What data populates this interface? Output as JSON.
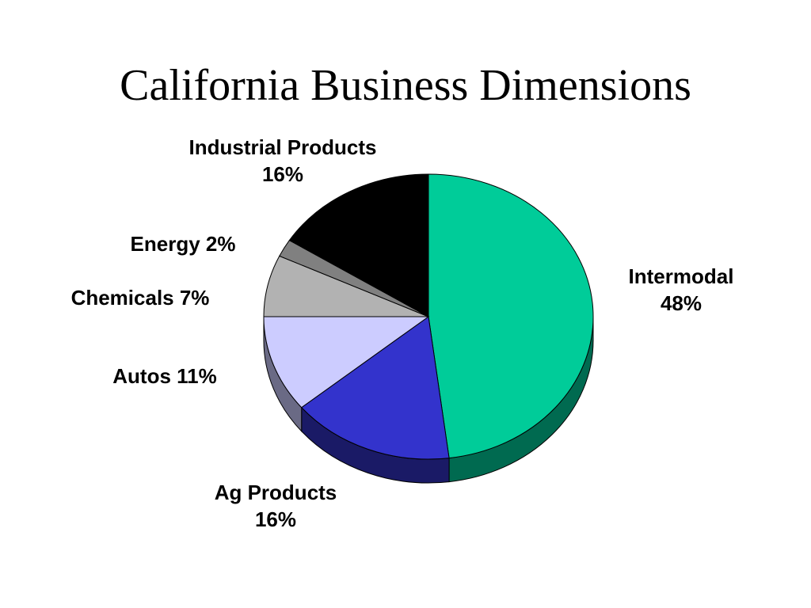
{
  "slide": {
    "title": "California Business Dimensions"
  },
  "chart_data": {
    "type": "pie",
    "style": "3d",
    "title": "California Business Dimensions",
    "slices": [
      {
        "name": "Intermodal",
        "value": 48,
        "label_lines": [
          "Intermodal",
          "48%"
        ],
        "color": "#00CC99",
        "side_color": "#006A50"
      },
      {
        "name": "Ag Products",
        "value": 16,
        "label_lines": [
          "Ag Products",
          "16%"
        ],
        "color": "#3333CC",
        "side_color": "#1A1A66"
      },
      {
        "name": "Autos",
        "value": 11,
        "label_lines": [
          "Autos 11%"
        ],
        "color": "#CCCCFF",
        "side_color": "#6A6A85"
      },
      {
        "name": "Chemicals",
        "value": 7,
        "label_lines": [
          "Chemicals 7%"
        ],
        "color": "#B2B2B2",
        "side_color": "#5C5C5C"
      },
      {
        "name": "Energy",
        "value": 2,
        "label_lines": [
          "Energy 2%"
        ],
        "color": "#808080",
        "side_color": "#404040"
      },
      {
        "name": "Industrial Products",
        "value": 16,
        "label_lines": [
          "Industrial Products",
          "16%"
        ],
        "color": "#000000",
        "side_color": "#000000"
      }
    ]
  }
}
